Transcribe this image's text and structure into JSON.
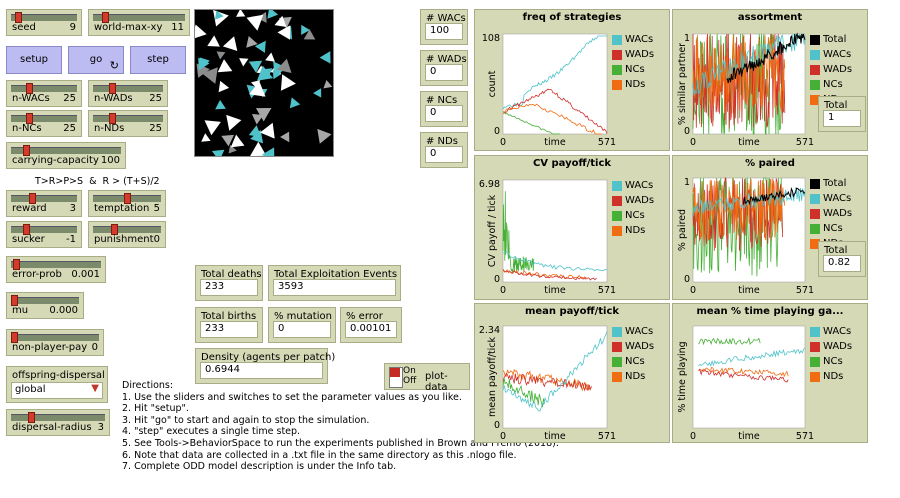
{
  "sliders": [
    {
      "id": "seed",
      "label": "seed",
      "value": "9",
      "frac": 0.06
    },
    {
      "id": "world-max-xy",
      "label": "world-max-xy",
      "value": "11",
      "frac": 0.1
    },
    {
      "id": "n-WACs",
      "label": "n-WACs",
      "value": "25",
      "frac": 0.25
    },
    {
      "id": "n-WADs",
      "label": "n-WADs",
      "value": "25",
      "frac": 0.25
    },
    {
      "id": "n-NCs",
      "label": "n-NCs",
      "value": "25",
      "frac": 0.25
    },
    {
      "id": "n-NDs",
      "label": "n-NDs",
      "value": "25",
      "frac": 0.25
    },
    {
      "id": "carrying-capacity",
      "label": "carrying-capacity",
      "value": "100",
      "frac": 0.12
    },
    {
      "id": "reward",
      "label": "reward",
      "value": "3",
      "frac": 0.3
    },
    {
      "id": "temptation",
      "label": "temptation",
      "value": "5",
      "frac": 0.5
    },
    {
      "id": "sucker",
      "label": "sucker",
      "value": "-1",
      "frac": 0.2
    },
    {
      "id": "punishment",
      "label": "punishment",
      "value": "0",
      "frac": 0.3
    },
    {
      "id": "error-prob",
      "label": "error-prob",
      "value": "0.001",
      "frac": 0.02
    },
    {
      "id": "mu",
      "label": "mu",
      "value": "0.000",
      "frac": 0.0
    },
    {
      "id": "non-player-pay",
      "label": "non-player-pay",
      "value": "0",
      "frac": 0.0
    },
    {
      "id": "dispersal-radius",
      "label": "dispersal-radius",
      "value": "3",
      "frac": 0.2
    }
  ],
  "buttons": {
    "setup": "setup",
    "go": "go",
    "step": "step",
    "go_icon": "↻"
  },
  "condition_text": "T>R>P>S  &  R > (T+S)/2",
  "chooser": {
    "label": "offspring-dispersal",
    "value": "global"
  },
  "switch": {
    "on": "On",
    "off": "Off",
    "label": "plot-data"
  },
  "monitors": [
    {
      "id": "wacs",
      "label": "# WACs",
      "value": "100"
    },
    {
      "id": "wads",
      "label": "# WADs",
      "value": "0"
    },
    {
      "id": "ncs",
      "label": "# NCs",
      "value": "0"
    },
    {
      "id": "nds",
      "label": "# NDs",
      "value": "0"
    },
    {
      "id": "total_deaths",
      "label": "Total deaths",
      "value": "233"
    },
    {
      "id": "total_exploit",
      "label": "Total Exploitation Events",
      "value": "3593"
    },
    {
      "id": "total_births",
      "label": "Total births",
      "value": "233"
    },
    {
      "id": "pct_mutation",
      "label": "% mutation",
      "value": "0"
    },
    {
      "id": "pct_error",
      "label": "% error",
      "value": "0.00101"
    },
    {
      "id": "density",
      "label": "Density (agents per patch)",
      "value": "0.6944"
    },
    {
      "id": "assort_total",
      "label": "Total",
      "value": "1"
    },
    {
      "id": "paired_total",
      "label": "Total",
      "value": "0.82"
    }
  ],
  "directions": {
    "title": "Directions:",
    "lines": [
      "1. Use the sliders and switches to set the parameter values as you like.",
      "2. Hit \"setup\".",
      "3. Hit \"go\" to start and again to stop the simulation.",
      "4. \"step\" executes a single time step.",
      "5. See Tools->BehaviorSpace to run the experiments published in Brown and Premo (2018).",
      "6. Note that data are collected in a .txt file in the same directory as this .nlogo file.",
      "7. Complete ODD model description is under the Info tab."
    ]
  },
  "colors": {
    "WACs": "#4fc3c9",
    "WADs": "#d0302a",
    "NCs": "#45b035",
    "NDs": "#ef6c12",
    "Total": "#000000",
    "widget": "#d6d9b5",
    "button": "#bcbbf2"
  },
  "plots": [
    {
      "id": "freq",
      "title": "freq of strategies",
      "ylabel": "count",
      "xlabel": "time",
      "xmin": "0",
      "xmax": "571",
      "ymin": "0",
      "ymax": "108",
      "legend": [
        "WACs",
        "WADs",
        "NCs",
        "NDs"
      ]
    },
    {
      "id": "assort",
      "title": "assortment",
      "ylabel": "% similar partner",
      "xlabel": "time",
      "xmin": "0",
      "xmax": "571",
      "ymin": "0",
      "ymax": "1",
      "legend": [
        "Total",
        "WACs",
        "WADs",
        "NCs",
        "NDs"
      ]
    },
    {
      "id": "cv",
      "title": "CV payoff/tick",
      "ylabel": "CV payoff / tick",
      "xlabel": "time",
      "xmin": "0",
      "xmax": "571",
      "ymin": "0",
      "ymax": "6.98",
      "legend": [
        "WACs",
        "WADs",
        "NCs",
        "NDs"
      ]
    },
    {
      "id": "paired",
      "title": "% paired",
      "ylabel": "% paired",
      "xlabel": "time",
      "xmin": "0",
      "xmax": "571",
      "ymin": "0",
      "ymax": "1",
      "legend": [
        "Total",
        "WACs",
        "WADs",
        "NCs",
        "NDs"
      ]
    },
    {
      "id": "meanpay",
      "title": "mean payoff/tick",
      "ylabel": "mean payoff/tick",
      "xlabel": "time",
      "xmin": "0",
      "xmax": "571",
      "ymin": "0",
      "ymax": "2.34",
      "legend": [
        "WACs",
        "WADs",
        "NCs",
        "NDs"
      ]
    },
    {
      "id": "meantime",
      "title": "mean % time playing ga...",
      "ylabel": "% time playing",
      "xlabel": "time",
      "xmin": "0",
      "xmax": "571",
      "ymin": "",
      "ymax": "",
      "legend": [
        "WACs",
        "WADs",
        "NCs",
        "NDs"
      ]
    }
  ]
}
